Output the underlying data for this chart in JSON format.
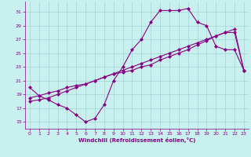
{
  "xlabel": "Windchill (Refroidissement éolien,°C)",
  "xlim": [
    -0.5,
    23.5
  ],
  "ylim": [
    14,
    32.5
  ],
  "yticks": [
    15,
    17,
    19,
    21,
    23,
    25,
    27,
    29,
    31
  ],
  "xticks": [
    0,
    1,
    2,
    3,
    4,
    5,
    6,
    7,
    8,
    9,
    10,
    11,
    12,
    13,
    14,
    15,
    16,
    17,
    18,
    19,
    20,
    21,
    22,
    23
  ],
  "bg_color": "#c8f0ee",
  "grid_color": "#a8d8d8",
  "line_color": "#880088",
  "line1_x": [
    0,
    1,
    2,
    3,
    4,
    5,
    6,
    7,
    8,
    9,
    10,
    11,
    12,
    13,
    14,
    15,
    16,
    17,
    18,
    19,
    20,
    21,
    22,
    23
  ],
  "line1_y": [
    20.0,
    18.8,
    18.2,
    17.5,
    17.0,
    16.0,
    15.0,
    15.5,
    17.5,
    21.0,
    23.0,
    25.5,
    27.0,
    29.5,
    31.2,
    31.2,
    31.2,
    31.5,
    29.5,
    29.0,
    26.0,
    25.5,
    25.5,
    22.5
  ],
  "line2_x": [
    0,
    1,
    2,
    3,
    4,
    5,
    6,
    7,
    8,
    9,
    10,
    11,
    12,
    13,
    14,
    15,
    16,
    17,
    18,
    19,
    20,
    21,
    22,
    23
  ],
  "line2_y": [
    18.5,
    18.8,
    19.2,
    19.5,
    20.0,
    20.3,
    20.5,
    21.0,
    21.5,
    22.0,
    22.2,
    22.5,
    23.0,
    23.3,
    24.0,
    24.5,
    25.0,
    25.5,
    26.2,
    26.8,
    27.5,
    28.0,
    28.0,
    22.5
  ],
  "line3_x": [
    0,
    1,
    2,
    3,
    4,
    5,
    6,
    7,
    8,
    9,
    10,
    11,
    12,
    13,
    14,
    15,
    16,
    17,
    18,
    19,
    20,
    21,
    22,
    23
  ],
  "line3_y": [
    18.0,
    18.2,
    18.5,
    19.0,
    19.5,
    20.0,
    20.5,
    21.0,
    21.5,
    22.0,
    22.5,
    23.0,
    23.5,
    24.0,
    24.5,
    25.0,
    25.5,
    26.0,
    26.5,
    27.0,
    27.5,
    28.0,
    28.5,
    22.5
  ]
}
